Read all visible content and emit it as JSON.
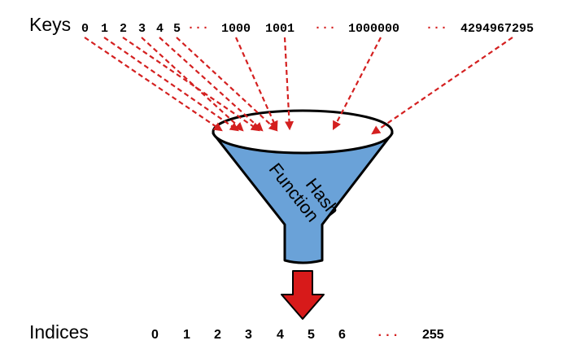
{
  "keys_label": "Keys",
  "keys": [
    "0",
    "1",
    "2",
    "3",
    "4",
    "5",
    "···",
    "1000",
    "1001",
    "···",
    "1000000",
    "···",
    "4294967295"
  ],
  "funnel": {
    "line1": "Hash",
    "line2": "Function"
  },
  "indices_label": "Indices",
  "indices": [
    "0",
    "1",
    "2",
    "3",
    "4",
    "5",
    "6",
    "···",
    "255"
  ],
  "colors": {
    "arrow": "#d42020",
    "funnel_fill": "#6aa2d8",
    "funnel_stroke": "#000000",
    "down_arrow": "#d71a1a"
  }
}
